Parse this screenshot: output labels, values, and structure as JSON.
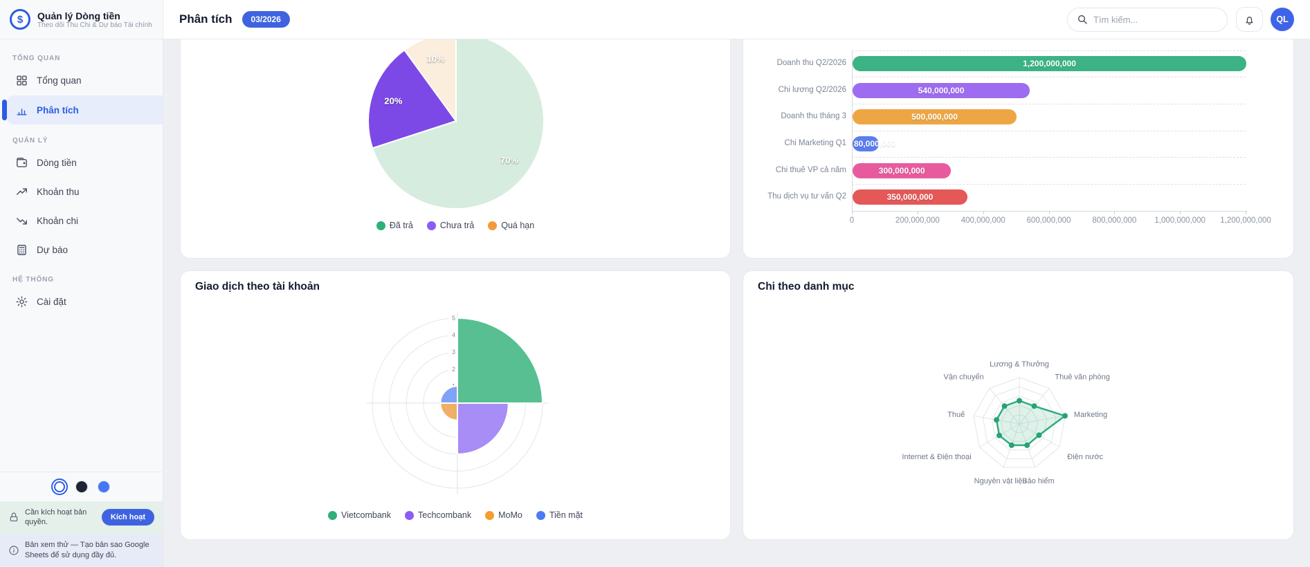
{
  "sidebar": {
    "brand": {
      "title": "Quản lý Dòng tiền",
      "subtitle": "Theo dõi Thu Chi & Dự báo Tài chính",
      "logo_icon": "dollar-circle-icon",
      "logo_glyph": "$"
    },
    "sections": [
      {
        "label": "TỔNG QUAN",
        "items": [
          {
            "label": "Tổng quan",
            "icon": "grid-icon",
            "active": false
          },
          {
            "label": "Phân tích",
            "icon": "bar-chart-icon",
            "active": true
          }
        ]
      },
      {
        "label": "QUẢN LÝ",
        "items": [
          {
            "label": "Dòng tiền",
            "icon": "wallet-icon",
            "active": false
          },
          {
            "label": "Khoản thu",
            "icon": "trending-up-icon",
            "active": false
          },
          {
            "label": "Khoản chi",
            "icon": "trending-down-icon",
            "active": false
          },
          {
            "label": "Dự báo",
            "icon": "calculator-icon",
            "active": false
          }
        ]
      },
      {
        "label": "HỆ THỐNG",
        "items": [
          {
            "label": "Cài đặt",
            "icon": "gear-icon",
            "active": false
          }
        ]
      }
    ],
    "theme_dots": [
      {
        "name": "light",
        "color": "#ffffff",
        "selected": true
      },
      {
        "name": "dark",
        "color": "#1d2434",
        "selected": false
      },
      {
        "name": "blue",
        "color": "#4676f5",
        "selected": false
      }
    ],
    "license_notice": {
      "icon": "lock-icon",
      "text": "Cần kích hoạt bản quyền.",
      "button_label": "Kích hoạt",
      "button_color": "#3f63e0"
    },
    "preview_notice": {
      "icon": "info-icon",
      "text": "Bản xem thử — Tạo bản sao Google Sheets để sử dụng đầy đủ."
    }
  },
  "header": {
    "title": "Phân tích",
    "period_badge": "03/2026",
    "badge_color": "#3f63e0",
    "search_placeholder": "Tìm kiếm...",
    "search_icon": "search-icon",
    "bell_icon": "bell-icon",
    "avatar_initials": "QL",
    "avatar_color": "#3f63e8"
  },
  "chart_data": [
    {
      "panel": "payment-status-pie",
      "type": "pie",
      "labels": [
        "Đã trả",
        "Chưa trả",
        "Quá hạn"
      ],
      "values": [
        70,
        20,
        10
      ],
      "value_labels": [
        "70%",
        "20%",
        "10%"
      ],
      "slice_colors": [
        "#d6ecdf",
        "#7c49e6",
        "#fbeedc"
      ],
      "legend_colors": [
        "#2eaf7c",
        "#8b5cf6",
        "#f29a38"
      ],
      "legend_position": "bottom",
      "start_angle": "top",
      "direction": "clockwise"
    },
    {
      "panel": "amounts-hbar",
      "type": "bar",
      "orientation": "horizontal",
      "categories": [
        "Doanh thu Q2/2026",
        "Chi lương Q2/2026",
        "Doanh thu tháng 3",
        "Chi Marketing Q1",
        "Chi thuê VP cả năm",
        "Thu dịch vụ tư vấn Q2"
      ],
      "values": [
        1200000000,
        540000000,
        500000000,
        80000000,
        300000000,
        350000000
      ],
      "value_labels": [
        "1,200,000,000",
        "540,000,000",
        "500,000,000",
        "80,000,000",
        "300,000,000",
        "350,000,000"
      ],
      "bar_colors": [
        "#3cb385",
        "#9d6cf0",
        "#eda643",
        "#5a7df0",
        "#e75b9e",
        "#e45858"
      ],
      "x_ticks": [
        "0",
        "200,000,000",
        "400,000,000",
        "600,000,000",
        "800,000,000",
        "1,000,000,000",
        "1,200,000,000"
      ],
      "xlim": [
        0,
        1200000000
      ],
      "grid": "dashed-horizontal"
    },
    {
      "panel": "transactions-polar",
      "type": "polar-area",
      "title": "Giao dịch theo tài khoản",
      "categories": [
        "Vietcombank",
        "Techcombank",
        "MoMo",
        "Tiền mặt"
      ],
      "values": [
        5,
        3,
        1,
        1
      ],
      "colors": [
        "#57bf92",
        "#a78df5",
        "#f1ae66",
        "#7fa3f7"
      ],
      "legend_colors": [
        "#2eaf7c",
        "#8b5cf6",
        "#f59e2d",
        "#4b7bf5"
      ],
      "r_ticks": [
        "1",
        "2",
        "3",
        "4",
        "5"
      ],
      "rlim": [
        0,
        5
      ],
      "legend_position": "bottom"
    },
    {
      "panel": "expenses-radar",
      "type": "radar",
      "title": "Chi theo danh mục",
      "categories": [
        "Lương & Thưởng",
        "Thuê văn phòng",
        "Marketing",
        "Điện nước",
        "Bảo hiểm",
        "Nguyên vật liệu",
        "Internet & Điện thoại",
        "Thuế",
        "Vận chuyển"
      ],
      "values_relative": [
        0.5,
        0.5,
        1.0,
        0.49,
        0.49,
        0.49,
        0.5,
        0.5,
        0.5
      ],
      "rlim": [
        0,
        1
      ],
      "rings": 5,
      "line_color": "#2fad7c",
      "dot_color": "#27a274",
      "fill_color": "rgba(47,173,124,0.16)"
    }
  ]
}
